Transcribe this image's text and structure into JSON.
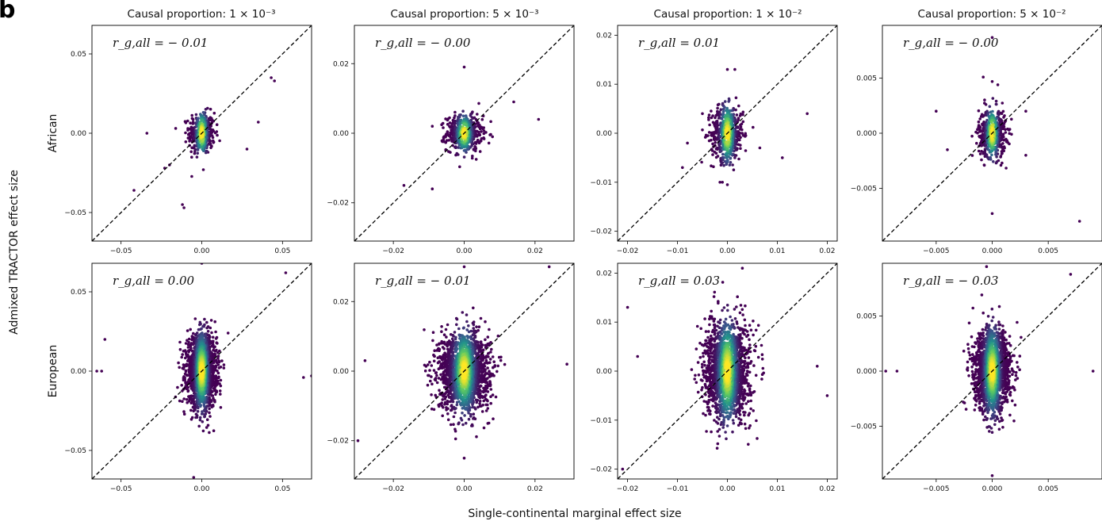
{
  "panel_letter": "b",
  "figure": {
    "ylabel": "Admixed TRACTOR effect size",
    "xlabel": "Single-continental marginal effect size"
  },
  "chart_data": {
    "type": "scatter",
    "rows": [
      "African",
      "European"
    ],
    "columns": [
      {
        "title": "Causal proportion: 1 × 10⁻³",
        "lim": [
          -0.068,
          0.068
        ],
        "ticks": [
          -0.05,
          0.0,
          0.05
        ],
        "tick_labels": [
          "−0.05",
          "0.00",
          "0.05"
        ]
      },
      {
        "title": "Causal proportion: 5 × 10⁻³",
        "lim": [
          -0.031,
          0.031
        ],
        "ticks": [
          -0.02,
          0.0,
          0.02
        ],
        "tick_labels": [
          "−0.02",
          "0.00",
          "0.02"
        ]
      },
      {
        "title": "Causal proportion: 1 × 10⁻²",
        "lim": [
          -0.022,
          0.022
        ],
        "ticks": [
          -0.02,
          -0.01,
          0.0,
          0.01,
          0.02
        ],
        "tick_labels": [
          "−0.02",
          "−0.01",
          "0.00",
          "0.01",
          "0.02"
        ]
      },
      {
        "title": "Causal proportion: 5 × 10⁻²",
        "lim": [
          -0.0098,
          0.0098
        ],
        "ticks": [
          -0.005,
          0.0,
          0.005
        ],
        "tick_labels": [
          "−0.005",
          "0.000",
          "0.005"
        ]
      }
    ],
    "annotations": [
      [
        "r_g,all = − 0.01",
        "r_g,all = − 0.00",
        "r_g,all = 0.01",
        "r_g,all = − 0.00"
      ],
      [
        "r_g,all = 0.00",
        "r_g,all = − 0.01",
        "r_g,all = 0.03",
        "r_g,all = − 0.03"
      ]
    ],
    "reference_line": "y = x (dashed)",
    "colormap": [
      "#440154",
      "#3b528b",
      "#21918c",
      "#5ec962",
      "#fde725"
    ],
    "density_colored": true,
    "panels": [
      {
        "row": 0,
        "col": 0,
        "core_sd_x": 0.004,
        "core_sd_y": 0.0065,
        "n": 380,
        "outliers": [
          [
            -0.042,
            -0.036
          ],
          [
            -0.012,
            -0.045
          ],
          [
            -0.011,
            -0.047
          ],
          [
            0.045,
            0.033
          ],
          [
            0.043,
            0.035
          ],
          [
            -0.034,
            0.0
          ],
          [
            0.001,
            -0.023
          ],
          [
            0.002,
            0.013
          ],
          [
            0.035,
            0.007
          ],
          [
            0.028,
            -0.01
          ],
          [
            -0.023,
            -0.022
          ],
          [
            -0.02,
            -0.02
          ]
        ]
      },
      {
        "row": 0,
        "col": 1,
        "core_sd_x": 0.0025,
        "core_sd_y": 0.0025,
        "n": 520,
        "outliers": [
          [
            0.0,
            0.019
          ],
          [
            -0.017,
            -0.015
          ],
          [
            -0.009,
            -0.016
          ],
          [
            0.021,
            0.004
          ],
          [
            0.014,
            0.009
          ],
          [
            0.008,
            -0.001
          ],
          [
            -0.009,
            0.002
          ],
          [
            0.0,
            -0.005
          ]
        ]
      },
      {
        "row": 0,
        "col": 2,
        "core_sd_x": 0.0016,
        "core_sd_y": 0.0028,
        "n": 560,
        "outliers": [
          [
            0.0,
            0.013
          ],
          [
            0.0015,
            0.013
          ],
          [
            -0.005,
            0.004
          ],
          [
            -0.001,
            -0.01
          ],
          [
            -0.0015,
            -0.01
          ],
          [
            0.0,
            -0.0105
          ],
          [
            0.016,
            0.004
          ],
          [
            0.0065,
            -0.003
          ],
          [
            0.011,
            -0.005
          ],
          [
            -0.009,
            -0.007
          ],
          [
            -0.008,
            -0.002
          ]
        ]
      },
      {
        "row": 0,
        "col": 3,
        "core_sd_x": 0.0006,
        "core_sd_y": 0.0011,
        "n": 520,
        "outliers": [
          [
            0.0,
            0.0087
          ],
          [
            0.0,
            -0.0073
          ],
          [
            0.0,
            0.0047
          ],
          [
            0.0005,
            0.0044
          ],
          [
            -0.0008,
            0.0051
          ],
          [
            0.0078,
            -0.008
          ],
          [
            -0.005,
            0.002
          ],
          [
            -0.004,
            -0.0015
          ],
          [
            0.003,
            0.002
          ],
          [
            0.003,
            -0.002
          ]
        ]
      },
      {
        "row": 1,
        "col": 0,
        "core_sd_x": 0.0045,
        "core_sd_y": 0.011,
        "n": 1800,
        "outliers": [
          [
            -0.065,
            0.0
          ],
          [
            -0.06,
            0.02
          ],
          [
            0.0,
            0.068
          ],
          [
            -0.005,
            -0.067
          ],
          [
            0.063,
            -0.004
          ],
          [
            0.052,
            0.062
          ],
          [
            0.068,
            -0.003
          ],
          [
            -0.062,
            0.0
          ]
        ]
      },
      {
        "row": 1,
        "col": 1,
        "core_sd_x": 0.0035,
        "core_sd_y": 0.0055,
        "n": 1800,
        "outliers": [
          [
            -0.03,
            -0.02
          ],
          [
            0.024,
            0.03
          ],
          [
            0.0,
            0.03
          ],
          [
            -0.028,
            0.003
          ],
          [
            0.029,
            0.002
          ],
          [
            0.0,
            -0.025
          ]
        ]
      },
      {
        "row": 1,
        "col": 2,
        "core_sd_x": 0.0022,
        "core_sd_y": 0.0048,
        "n": 1800,
        "outliers": [
          [
            -0.02,
            0.013
          ],
          [
            -0.021,
            -0.02
          ],
          [
            0.02,
            -0.005
          ],
          [
            0.003,
            0.021
          ],
          [
            -0.018,
            0.003
          ],
          [
            0.018,
            0.001
          ]
        ]
      },
      {
        "row": 1,
        "col": 3,
        "core_sd_x": 0.0008,
        "core_sd_y": 0.0018,
        "n": 1800,
        "outliers": [
          [
            -0.0095,
            0.0
          ],
          [
            0.009,
            0.0
          ],
          [
            -0.0005,
            0.0095
          ],
          [
            0.0,
            -0.0095
          ],
          [
            0.007,
            0.0088
          ],
          [
            -0.0085,
            0.0
          ]
        ]
      }
    ]
  }
}
